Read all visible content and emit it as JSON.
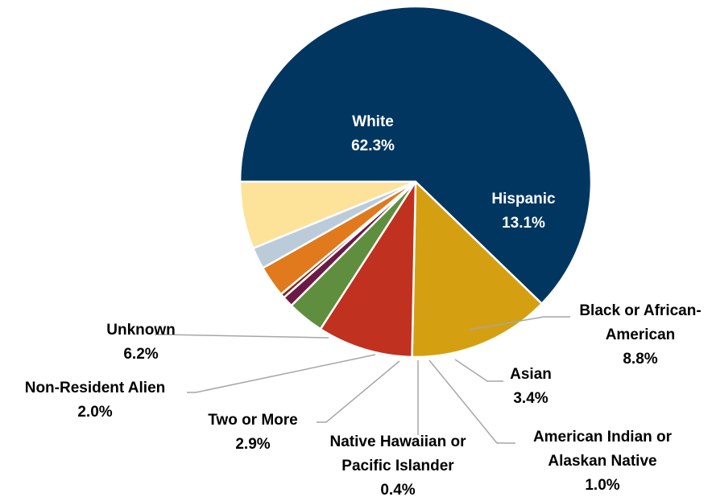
{
  "chart_data": {
    "type": "pie",
    "title": "",
    "start_angle_deg": -180,
    "direction": "clockwise",
    "slices": [
      {
        "label_lines": [
          "White"
        ],
        "value": 62.3,
        "value_label": "62.3%",
        "color": "#003660",
        "label_color": "#ffffff",
        "label_inside": true
      },
      {
        "label_lines": [
          "Hispanic"
        ],
        "value": 13.1,
        "value_label": "13.1%",
        "color": "#d4a012",
        "label_color": "#ffffff",
        "label_inside": true
      },
      {
        "label_lines": [
          "Black or African-",
          "American"
        ],
        "value": 8.8,
        "value_label": "8.8%",
        "color": "#c0311f",
        "label_color": "#000000",
        "label_inside": false
      },
      {
        "label_lines": [
          "Asian"
        ],
        "value": 3.4,
        "value_label": "3.4%",
        "color": "#5f8f3e",
        "label_color": "#000000",
        "label_inside": false
      },
      {
        "label_lines": [
          "American Indian or",
          "Alaskan Native"
        ],
        "value": 1.0,
        "value_label": "1.0%",
        "color": "#6b1a45",
        "label_color": "#000000",
        "label_inside": false
      },
      {
        "label_lines": [
          "Native Hawaiian or",
          "Pacific Islander"
        ],
        "value": 0.4,
        "value_label": "0.4%",
        "color": "#7d2b1c",
        "label_color": "#000000",
        "label_inside": false
      },
      {
        "label_lines": [
          "Two or More"
        ],
        "value": 2.9,
        "value_label": "2.9%",
        "color": "#e07a1c",
        "label_color": "#000000",
        "label_inside": false
      },
      {
        "label_lines": [
          "Non-Resident Alien"
        ],
        "value": 2.0,
        "value_label": "2.0%",
        "color": "#bccbd9",
        "label_color": "#000000",
        "label_inside": false
      },
      {
        "label_lines": [
          "Unknown"
        ],
        "value": 6.2,
        "value_label": "6.2%",
        "color": "#fde29a",
        "label_color": "#000000",
        "label_inside": false
      }
    ]
  }
}
